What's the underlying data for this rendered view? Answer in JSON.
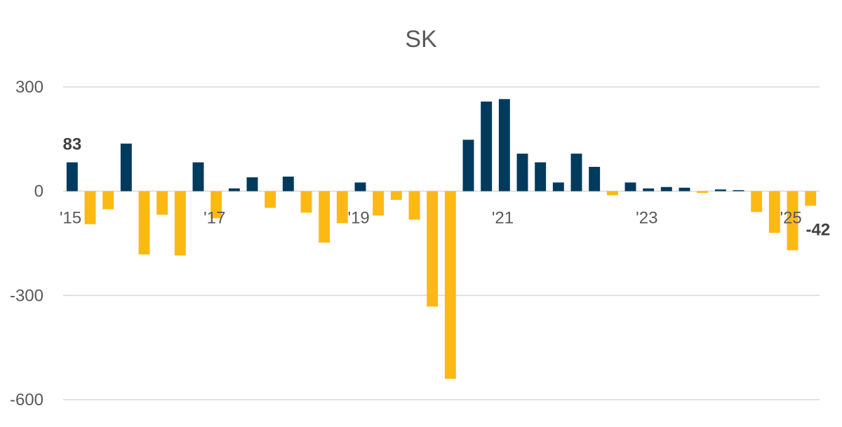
{
  "chart_data": {
    "type": "bar",
    "title": "SK",
    "xlabel": "",
    "ylabel": "",
    "ylim": [
      -600,
      300
    ],
    "y_ticks": [
      300,
      0,
      -300,
      -600
    ],
    "y_tick_labels": [
      "300",
      "0",
      "-300",
      "-600"
    ],
    "grid": true,
    "legend": "none",
    "colors": {
      "positive": "#003a5d",
      "negative": "#fdb913",
      "grid": "#d9d9d9",
      "text": "#595959"
    },
    "x_tick_labels": [
      {
        "index": 0,
        "label": "'15"
      },
      {
        "index": 8,
        "label": "'17"
      },
      {
        "index": 16,
        "label": "'19"
      },
      {
        "index": 24,
        "label": "'21"
      },
      {
        "index": 32,
        "label": "'23"
      },
      {
        "index": 40,
        "label": "'25"
      }
    ],
    "data_labels": [
      {
        "index": 0,
        "label": "83"
      },
      {
        "index": 41,
        "label": "-42"
      }
    ],
    "values": [
      83,
      -95,
      -52,
      137,
      -182,
      -68,
      -185,
      83,
      -78,
      8,
      40,
      -48,
      42,
      -62,
      -148,
      -92,
      25,
      -70,
      -25,
      -82,
      -332,
      -540,
      148,
      258,
      265,
      108,
      83,
      25,
      108,
      70,
      -12,
      25,
      8,
      12,
      10,
      -5,
      5,
      3,
      -60,
      -120,
      -170,
      -42
    ]
  }
}
